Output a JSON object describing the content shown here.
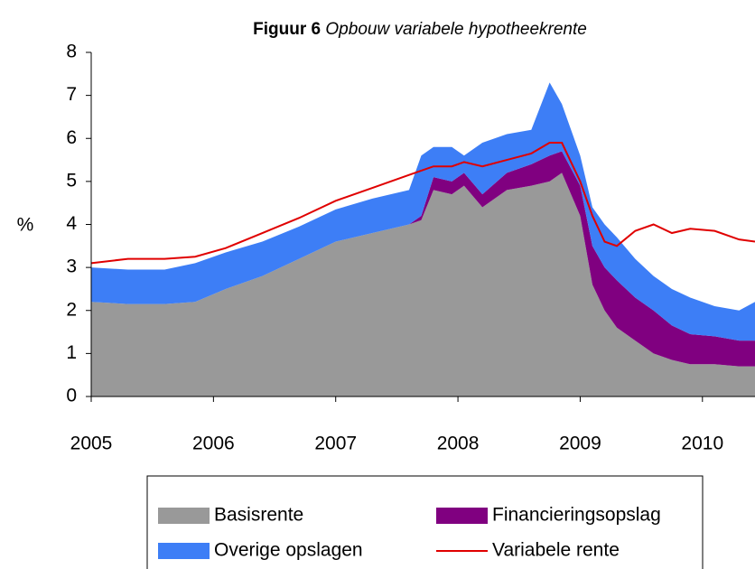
{
  "chart_data": {
    "type": "area",
    "title": "Figuur 6",
    "subtitle": "Opbouw variabele hypotheekrente",
    "ylabel": "%",
    "xlim": [
      2005,
      2010.43
    ],
    "xticks": [
      2005,
      2006,
      2007,
      2008,
      2009,
      2010
    ],
    "ylim": [
      0,
      8
    ],
    "yticks": [
      0,
      1,
      2,
      3,
      4,
      5,
      6,
      7,
      8
    ],
    "x": [
      2005,
      2005.3,
      2005.6,
      2005.85,
      2006.1,
      2006.4,
      2006.7,
      2007,
      2007.3,
      2007.6,
      2007.7,
      2007.8,
      2007.95,
      2008.05,
      2008.2,
      2008.4,
      2008.6,
      2008.75,
      2008.85,
      2009,
      2009.1,
      2009.2,
      2009.3,
      2009.45,
      2009.6,
      2009.75,
      2009.9,
      2010.1,
      2010.3,
      2010.43
    ],
    "series": [
      {
        "name": "Basisrente",
        "type": "area",
        "color": "#999999",
        "values": [
          2.2,
          2.15,
          2.15,
          2.2,
          2.5,
          2.8,
          3.2,
          3.6,
          3.8,
          4.0,
          4.1,
          4.8,
          4.7,
          4.9,
          4.4,
          4.8,
          4.9,
          5.0,
          5.2,
          4.2,
          2.6,
          2.0,
          1.6,
          1.3,
          1.0,
          0.85,
          0.75,
          0.75,
          0.7,
          0.7
        ]
      },
      {
        "name": "Financieringsopslag",
        "type": "area",
        "color": "#800080",
        "values": [
          0,
          0,
          0,
          0,
          0,
          0,
          0,
          0,
          0,
          0,
          0.1,
          0.3,
          0.3,
          0.3,
          0.3,
          0.4,
          0.5,
          0.6,
          0.5,
          0.7,
          0.9,
          1.0,
          1.1,
          1.0,
          1.0,
          0.8,
          0.7,
          0.65,
          0.6,
          0.6
        ]
      },
      {
        "name": "Overige opslagen",
        "type": "area",
        "color": "#3d7ef6",
        "values": [
          0.8,
          0.8,
          0.8,
          0.9,
          0.85,
          0.8,
          0.75,
          0.75,
          0.8,
          0.8,
          1.4,
          0.7,
          0.8,
          0.4,
          1.2,
          0.9,
          0.8,
          1.7,
          1.1,
          0.7,
          0.9,
          1.0,
          1.0,
          0.9,
          0.8,
          0.85,
          0.85,
          0.7,
          0.7,
          0.9
        ]
      },
      {
        "name": "Variabele rente",
        "type": "line",
        "color": "#e00000",
        "values": [
          3.1,
          3.2,
          3.2,
          3.25,
          3.45,
          3.8,
          4.15,
          4.55,
          4.85,
          5.15,
          5.25,
          5.35,
          5.35,
          5.45,
          5.35,
          5.5,
          5.65,
          5.9,
          5.9,
          5.0,
          4.2,
          3.6,
          3.5,
          3.85,
          4.0,
          3.8,
          3.9,
          3.85,
          3.65,
          3.6
        ]
      }
    ]
  }
}
